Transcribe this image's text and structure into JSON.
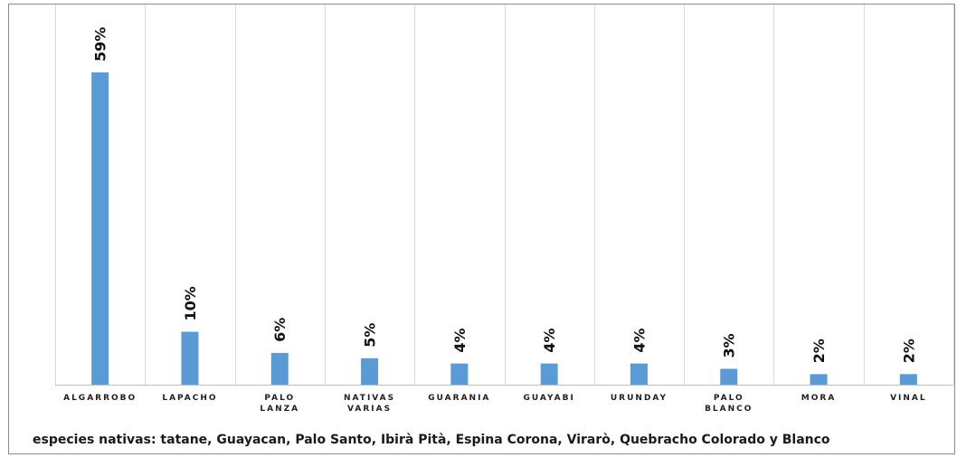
{
  "chart_data": {
    "type": "bar",
    "categories": [
      [
        "ALGARROBO"
      ],
      [
        "LAPACHO"
      ],
      [
        "PALO",
        "LANZA"
      ],
      [
        "NATIVAS",
        "VARIAS"
      ],
      [
        "GUARANIA"
      ],
      [
        "GUAYABI"
      ],
      [
        "URUNDAY"
      ],
      [
        "PALO",
        "BLANCO"
      ],
      [
        "MORA"
      ],
      [
        "VINAL"
      ]
    ],
    "values": [
      59,
      10,
      6,
      5,
      4,
      4,
      4,
      3,
      2,
      2
    ],
    "data_labels": [
      "59%",
      "10%",
      "6%",
      "5%",
      "4%",
      "4%",
      "4%",
      "3%",
      "2%",
      "2%"
    ],
    "unit": "%",
    "ylim": [
      0,
      60
    ],
    "grid": "vertical separators",
    "bar_color": "#5b9bd5",
    "footnote": "especies nativas: tatane, Guayacan, Palo Santo, Ibirà Pità, Espina Corona, Virarò, Quebracho Colorado y Blanco"
  }
}
